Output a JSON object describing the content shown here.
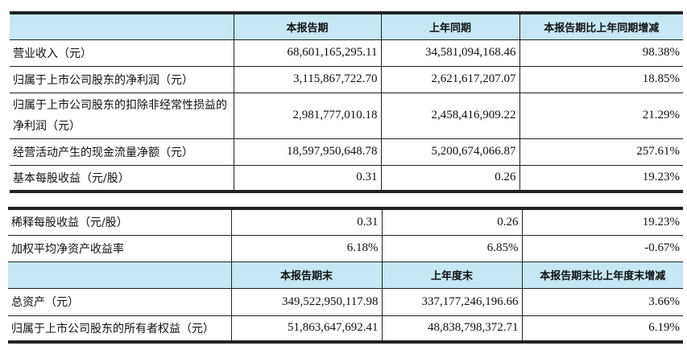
{
  "table1": {
    "headers": [
      "",
      "本报告期",
      "上年同期",
      "本报告期比上年同期增减"
    ],
    "rows": [
      {
        "label": "营业收入（元）",
        "current": "68,601,165,295.11",
        "prior": "34,581,094,168.46",
        "change": "98.38%"
      },
      {
        "label": "归属于上市公司股东的净利润（元）",
        "current": "3,115,867,722.70",
        "prior": "2,621,617,207.07",
        "change": "18.85%"
      },
      {
        "label": "归属于上市公司股东的扣除非经常性损益的净利润（元）",
        "current": "2,981,777,010.18",
        "prior": "2,458,416,909.22",
        "change": "21.29%"
      },
      {
        "label": "经营活动产生的现金流量净额（元）",
        "current": "18,597,950,648.78",
        "prior": "5,200,674,066.87",
        "change": "257.61%"
      },
      {
        "label": "基本每股收益（元/股）",
        "current": "0.31",
        "prior": "0.26",
        "change": "19.23%"
      }
    ]
  },
  "table2": {
    "rows_top": [
      {
        "label": "稀释每股收益（元/股）",
        "current": "0.31",
        "prior": "0.26",
        "change": "19.23%"
      },
      {
        "label": "加权平均净资产收益率",
        "current": "6.18%",
        "prior": "6.85%",
        "change": "-0.67%"
      }
    ],
    "headers": [
      "",
      "本报告期末",
      "上年度末",
      "本报告期末比上年度末增减"
    ],
    "rows_bottom": [
      {
        "label": "总资产（元）",
        "current": "349,522,950,117.98",
        "prior": "337,177,246,196.66",
        "change": "3.66%"
      },
      {
        "label": "归属于上市公司股东的所有者权益（元）",
        "current": "51,863,647,692.41",
        "prior": "48,838,798,372.71",
        "change": "6.19%"
      }
    ]
  },
  "colors": {
    "header_bg": "#c6e7f3",
    "border": "#222222"
  }
}
